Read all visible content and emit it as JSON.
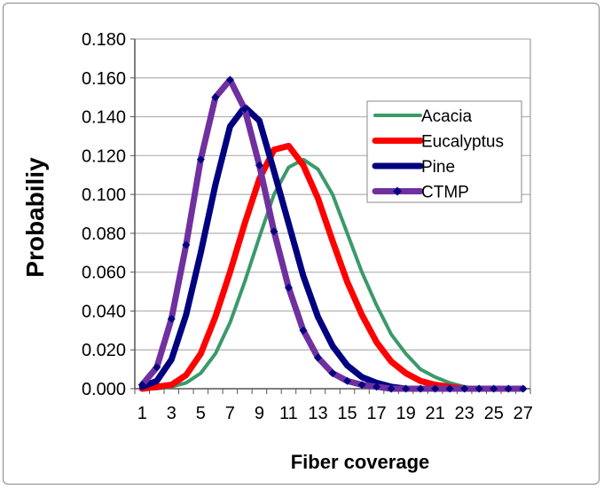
{
  "chart_data": {
    "type": "line",
    "title": "",
    "xlabel": "Fiber coverage",
    "ylabel": "Probabiliy",
    "ylim": [
      0,
      0.18
    ],
    "yticks": [
      "0.000",
      "0.020",
      "0.040",
      "0.060",
      "0.080",
      "0.100",
      "0.120",
      "0.140",
      "0.160",
      "0.180"
    ],
    "xtick_labels": [
      "1",
      "3",
      "5",
      "7",
      "9",
      "11",
      "13",
      "15",
      "17",
      "19",
      "21",
      "23",
      "25",
      "27"
    ],
    "x": [
      1,
      2,
      3,
      4,
      5,
      6,
      7,
      8,
      9,
      10,
      11,
      12,
      13,
      14,
      15,
      16,
      17,
      18,
      19,
      20,
      21,
      22,
      23,
      24,
      25,
      26,
      27
    ],
    "grid": "horizontal",
    "legend_position": "top-right",
    "series": [
      {
        "name": "Acacia",
        "color": "#3a9a6a",
        "width": 4,
        "markers": false,
        "values": [
          0,
          0,
          0.001,
          0.003,
          0.008,
          0.018,
          0.034,
          0.055,
          0.078,
          0.1,
          0.114,
          0.118,
          0.113,
          0.1,
          0.08,
          0.06,
          0.043,
          0.028,
          0.018,
          0.01,
          0.006,
          0.003,
          0.001,
          0,
          0,
          0,
          0
        ]
      },
      {
        "name": "Eucalyptus",
        "color": "#ff0000",
        "width": 7,
        "markers": false,
        "values": [
          0,
          0.001,
          0.002,
          0.007,
          0.018,
          0.037,
          0.06,
          0.085,
          0.108,
          0.123,
          0.125,
          0.115,
          0.098,
          0.076,
          0.055,
          0.038,
          0.024,
          0.014,
          0.008,
          0.004,
          0.002,
          0.001,
          0,
          0,
          0,
          0,
          0
        ]
      },
      {
        "name": "Pine",
        "color": "#000080",
        "width": 7,
        "markers": false,
        "values": [
          0.001,
          0.004,
          0.015,
          0.038,
          0.07,
          0.105,
          0.135,
          0.145,
          0.138,
          0.112,
          0.085,
          0.058,
          0.037,
          0.022,
          0.012,
          0.006,
          0.003,
          0.001,
          0,
          0,
          0,
          0,
          0,
          0,
          0,
          0,
          0
        ]
      },
      {
        "name": "CTMP",
        "color": "#7030a0",
        "marker_color": "#000080",
        "width": 7,
        "markers": true,
        "values": [
          0.002,
          0.011,
          0.036,
          0.074,
          0.118,
          0.15,
          0.159,
          0.144,
          0.115,
          0.081,
          0.052,
          0.03,
          0.016,
          0.008,
          0.004,
          0.002,
          0.001,
          0,
          0,
          0,
          0,
          0,
          0,
          0,
          0,
          0,
          0
        ]
      }
    ]
  }
}
